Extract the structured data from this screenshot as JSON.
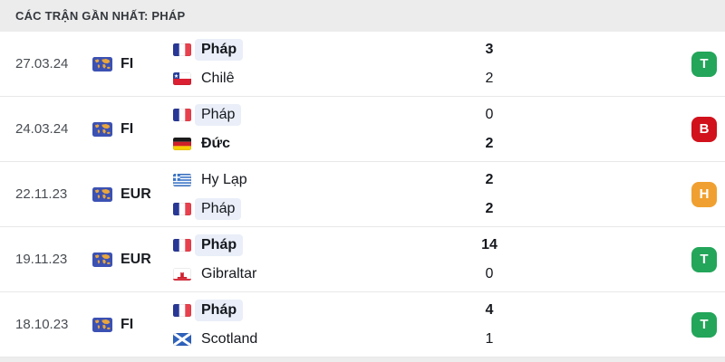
{
  "header": {
    "title": "CÁC TRẬN GẦN NHẤT: PHÁP"
  },
  "icons": {
    "competition": "world-map-icon"
  },
  "colors": {
    "win_badge": "#23a55a",
    "loss_badge": "#d1111c",
    "draw_badge": "#f0a030",
    "header_bg": "#ececec",
    "team_highlight": "#e9eef8",
    "row_divider": "#e8e8e8",
    "footer_strip": "#ededed"
  },
  "result_legend": {
    "T": "win",
    "B": "loss",
    "H": "draw"
  },
  "matches": [
    {
      "date": "27.03.24",
      "competition": "FI",
      "home": {
        "name": "Pháp",
        "flag": "france",
        "score": "3",
        "name_bold": true,
        "score_bold": true,
        "highlight": true
      },
      "away": {
        "name": "Chilê",
        "flag": "chile",
        "score": "2",
        "name_bold": false,
        "score_bold": false,
        "highlight": false
      },
      "result": {
        "label": "T",
        "type": "win"
      }
    },
    {
      "date": "24.03.24",
      "competition": "FI",
      "home": {
        "name": "Pháp",
        "flag": "france",
        "score": "0",
        "name_bold": false,
        "score_bold": false,
        "highlight": true
      },
      "away": {
        "name": "Đức",
        "flag": "germany",
        "score": "2",
        "name_bold": true,
        "score_bold": true,
        "highlight": false
      },
      "result": {
        "label": "B",
        "type": "loss"
      }
    },
    {
      "date": "22.11.23",
      "competition": "EUR",
      "home": {
        "name": "Hy Lạp",
        "flag": "greece",
        "score": "2",
        "name_bold": false,
        "score_bold": true,
        "highlight": false
      },
      "away": {
        "name": "Pháp",
        "flag": "france",
        "score": "2",
        "name_bold": false,
        "score_bold": true,
        "highlight": true
      },
      "result": {
        "label": "H",
        "type": "draw"
      }
    },
    {
      "date": "19.11.23",
      "competition": "EUR",
      "home": {
        "name": "Pháp",
        "flag": "france",
        "score": "14",
        "name_bold": true,
        "score_bold": true,
        "highlight": true
      },
      "away": {
        "name": "Gibraltar",
        "flag": "gibraltar",
        "score": "0",
        "name_bold": false,
        "score_bold": false,
        "highlight": false
      },
      "result": {
        "label": "T",
        "type": "win"
      }
    },
    {
      "date": "18.10.23",
      "competition": "FI",
      "home": {
        "name": "Pháp",
        "flag": "france",
        "score": "4",
        "name_bold": true,
        "score_bold": true,
        "highlight": true
      },
      "away": {
        "name": "Scotland",
        "flag": "scotland",
        "score": "1",
        "name_bold": false,
        "score_bold": false,
        "highlight": false
      },
      "result": {
        "label": "T",
        "type": "win"
      }
    }
  ]
}
